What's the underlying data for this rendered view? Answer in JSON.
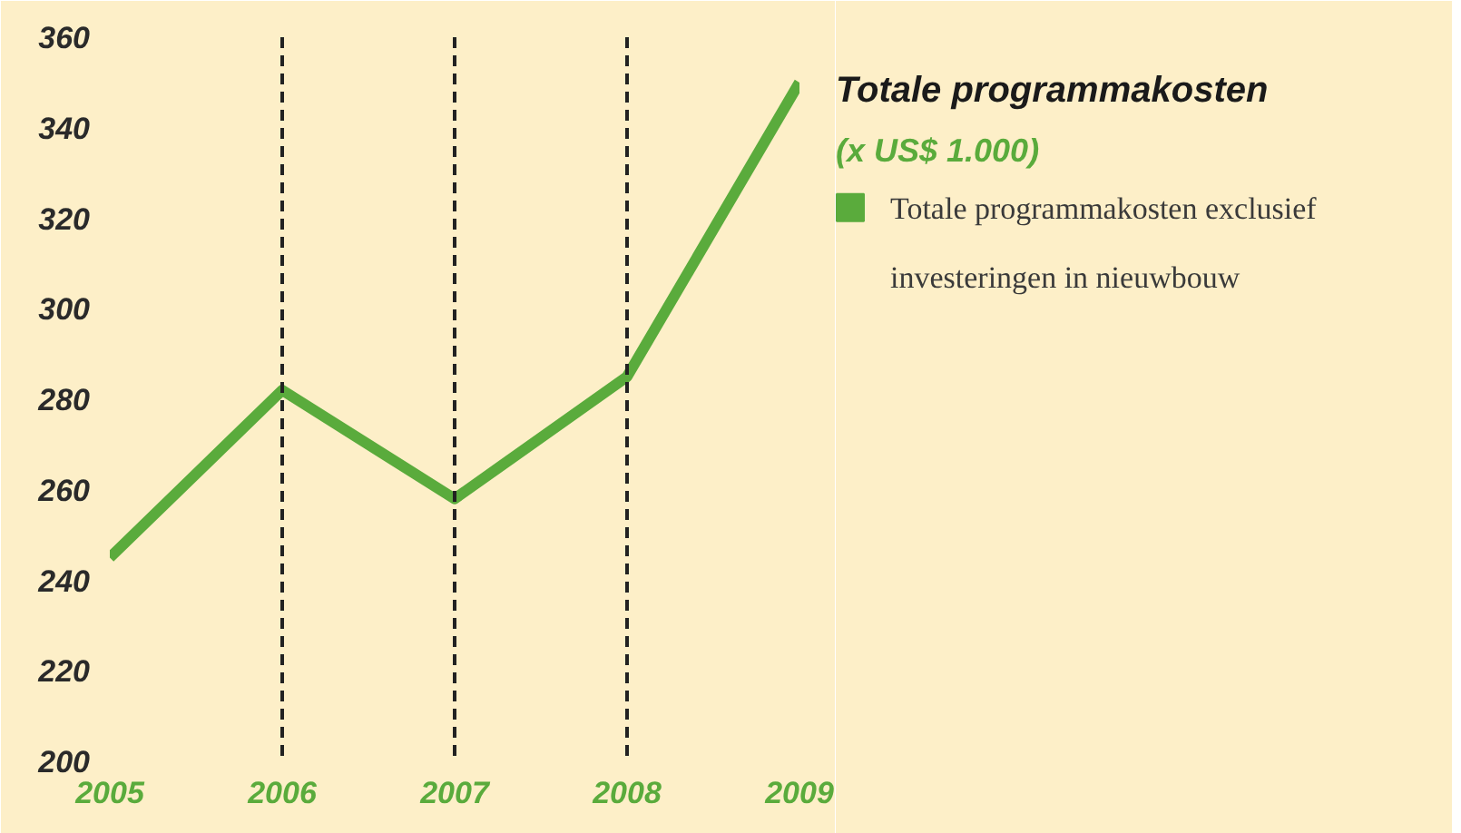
{
  "chart_data": {
    "type": "line",
    "title": "Totale programmakosten",
    "subtitle": "(x US$ 1.000)",
    "x": [
      2005,
      2006,
      2007,
      2008,
      2009
    ],
    "series": [
      {
        "name": "Totale programmakosten exclusief investeringen in nieuwbouw",
        "color": "#5aab3c",
        "values": [
          245,
          282,
          258,
          285,
          350
        ]
      }
    ],
    "xlim": [
      2005,
      2009
    ],
    "xticks": [
      2005,
      2006,
      2007,
      2008,
      2009
    ],
    "ylim": [
      200,
      360
    ],
    "yticks": [
      200,
      220,
      240,
      260,
      280,
      300,
      320,
      340,
      360
    ],
    "ref_lines": [
      {
        "axis": "x",
        "value": 2006,
        "color": "#222222",
        "line_style": "dashed"
      },
      {
        "axis": "x",
        "value": 2007,
        "color": "#222222",
        "line_style": "dashed"
      },
      {
        "axis": "x",
        "value": 2008,
        "color": "#222222",
        "line_style": "dashed"
      }
    ],
    "grid": false,
    "legend": "right",
    "marker": "none",
    "line_style": "solid"
  }
}
